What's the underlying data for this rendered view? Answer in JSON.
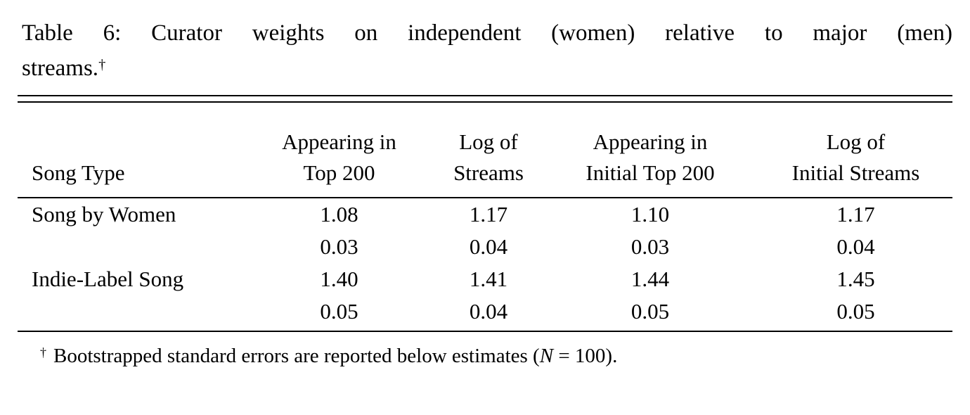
{
  "caption": {
    "line1": "Table 6: Curator weights on independent (women) relative to major (men)",
    "line2": "streams.",
    "dagger": "†"
  },
  "table": {
    "columns": [
      {
        "line1": "",
        "line2": "Song Type"
      },
      {
        "line1": "Appearing in",
        "line2": "Top 200"
      },
      {
        "line1": "Log of",
        "line2": "Streams"
      },
      {
        "line1": "Appearing in",
        "line2": "Initial Top 200"
      },
      {
        "line1": "Log of",
        "line2": "Initial Streams"
      }
    ],
    "rows": [
      {
        "label": "Song by Women",
        "type": "estimate",
        "values": [
          "1.08",
          "1.17",
          "1.10",
          "1.17"
        ]
      },
      {
        "label": "",
        "type": "standard-error",
        "values": [
          "0.03",
          "0.04",
          "0.03",
          "0.04"
        ]
      },
      {
        "label": "Indie-Label Song",
        "type": "estimate",
        "values": [
          "1.40",
          "1.41",
          "1.44",
          "1.45"
        ]
      },
      {
        "label": "",
        "type": "standard-error",
        "values": [
          "0.05",
          "0.04",
          "0.05",
          "0.05"
        ]
      }
    ]
  },
  "footnote": {
    "dagger": "†",
    "text_before": "Bootstrapped standard errors are reported below estimates (",
    "n_symbol": "N",
    "text_after": " = 100)."
  },
  "colors": {
    "text": "#000000",
    "background": "#ffffff",
    "rule": "#000000"
  }
}
